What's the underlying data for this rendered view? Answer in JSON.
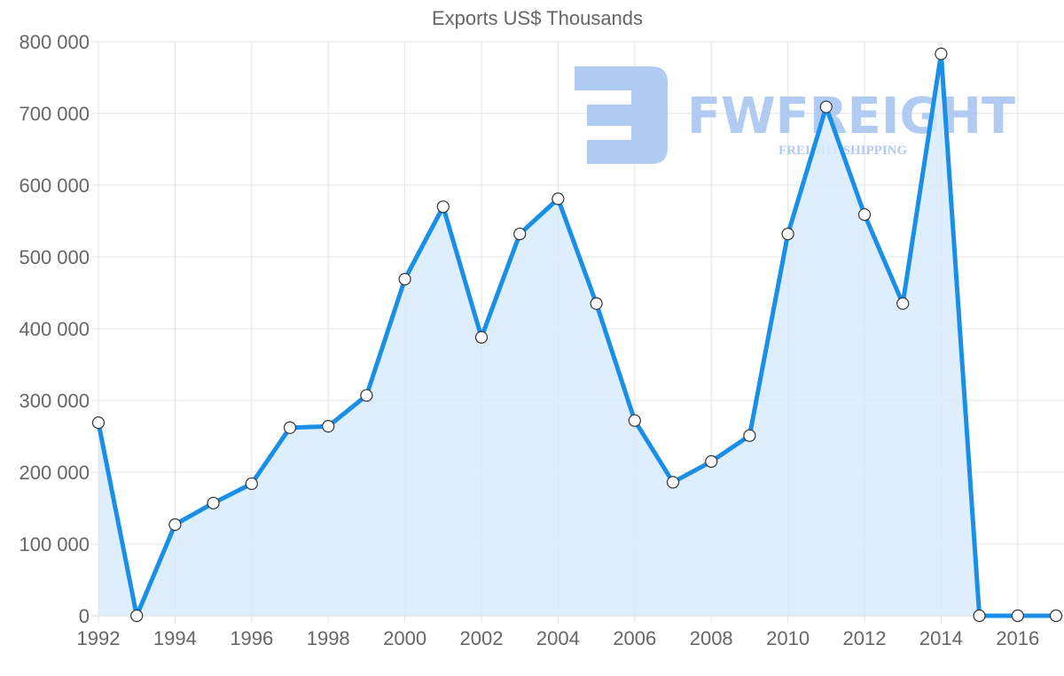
{
  "chart_data": {
    "type": "area",
    "title": "Exports US$ Thousands",
    "xlabel": "",
    "ylabel": "",
    "x": [
      1992,
      1993,
      1994,
      1995,
      1996,
      1997,
      1998,
      1999,
      2000,
      2001,
      2002,
      2003,
      2004,
      2005,
      2006,
      2007,
      2008,
      2009,
      2010,
      2011,
      2012,
      2013,
      2014,
      2015,
      2016,
      2017
    ],
    "series": [
      {
        "name": "Exports US$ Thousands",
        "values": [
          269000,
          0,
          127000,
          157000,
          184000,
          262000,
          264000,
          307000,
          469000,
          570000,
          388000,
          532000,
          581000,
          435000,
          272000,
          186000,
          215000,
          251000,
          532000,
          709000,
          559000,
          435000,
          783000,
          0,
          0,
          0
        ],
        "line_color": "#1a8fe8",
        "fill_color": "#d8ebfb"
      }
    ],
    "ylim": [
      0,
      800000
    ],
    "y_ticks": [
      "0",
      "100 000",
      "200 000",
      "300 000",
      "400 000",
      "500 000",
      "600 000",
      "700 000",
      "800 000"
    ],
    "x_ticks": [
      "1992",
      "1994",
      "1996",
      "1998",
      "2000",
      "2002",
      "2004",
      "2006",
      "2008",
      "2010",
      "2012",
      "2014",
      "2016"
    ],
    "grid": true,
    "legend": "none"
  },
  "watermark": {
    "brand": "FWFREIGHT",
    "tagline": "FREIGHT SHIPPING",
    "color": "#a9c6f2"
  }
}
